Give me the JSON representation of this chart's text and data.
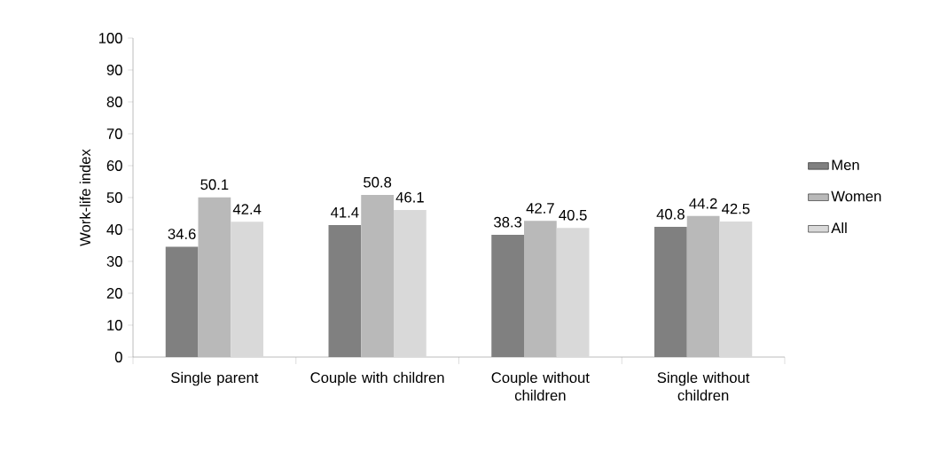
{
  "chart_data": {
    "type": "bar",
    "ylabel": "Work-life index",
    "categories": [
      "Single parent",
      "Couple with children",
      "Couple without children",
      "Single without children"
    ],
    "series": [
      {
        "name": "Men",
        "color": "#808080",
        "values": [
          34.6,
          41.4,
          38.3,
          40.8
        ]
      },
      {
        "name": "Women",
        "color": "#b9b9b9",
        "values": [
          50.1,
          50.8,
          42.7,
          44.2
        ]
      },
      {
        "name": "All",
        "color": "#d9d9d9",
        "values": [
          42.4,
          46.1,
          40.5,
          42.5
        ]
      }
    ],
    "ylim": [
      0,
      100
    ],
    "yticks": [
      0,
      10,
      20,
      30,
      40,
      50,
      60,
      70,
      80,
      90,
      100
    ],
    "data_labels": true,
    "legend": "right",
    "grid": false
  }
}
